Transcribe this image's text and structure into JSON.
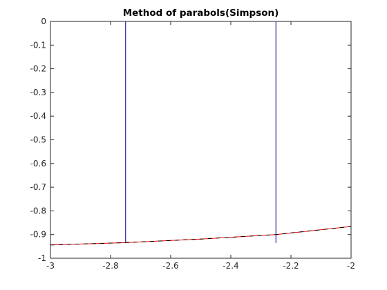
{
  "chart_data": {
    "type": "line",
    "title": "Method of parabols(Simpson)",
    "xlabel": "",
    "ylabel": "",
    "xlim": [
      -3,
      -2
    ],
    "ylim": [
      -1,
      0
    ],
    "xticks": [
      -3,
      -2.8,
      -2.6,
      -2.4,
      -2.2,
      -2
    ],
    "xtick_labels": [
      "-3",
      "-2.8",
      "-2.6",
      "-2.4",
      "-2.2",
      "-2"
    ],
    "yticks": [
      0,
      -0.1,
      -0.2,
      -0.3,
      -0.4,
      -0.5,
      -0.6,
      -0.7,
      -0.8,
      -0.9,
      -1
    ],
    "ytick_labels": [
      "0",
      "-0.1",
      "-0.2",
      "-0.3",
      "-0.4",
      "-0.5",
      "-0.6",
      "-0.7",
      "-0.8",
      "-0.9",
      "-1"
    ],
    "grid": false,
    "box": true,
    "series": [
      {
        "color": "#000080",
        "style": "vertical-lines",
        "x": [
          -2.75,
          -2.25,
          -2.0
        ],
        "y_from": -0.935,
        "y_to": 0
      },
      {
        "color": "#ff0000",
        "style": "line",
        "x": [
          -3.0,
          -2.75,
          -2.5,
          -2.25,
          -2.0
        ],
        "y": [
          -0.944,
          -0.934,
          -0.919,
          -0.9,
          -0.866
        ]
      },
      {
        "color": "#000000",
        "style": "dashed-line",
        "x": [
          -3.0,
          -2.75,
          -2.5,
          -2.25,
          -2.0
        ],
        "y": [
          -0.944,
          -0.934,
          -0.919,
          -0.9,
          -0.866
        ]
      }
    ]
  }
}
